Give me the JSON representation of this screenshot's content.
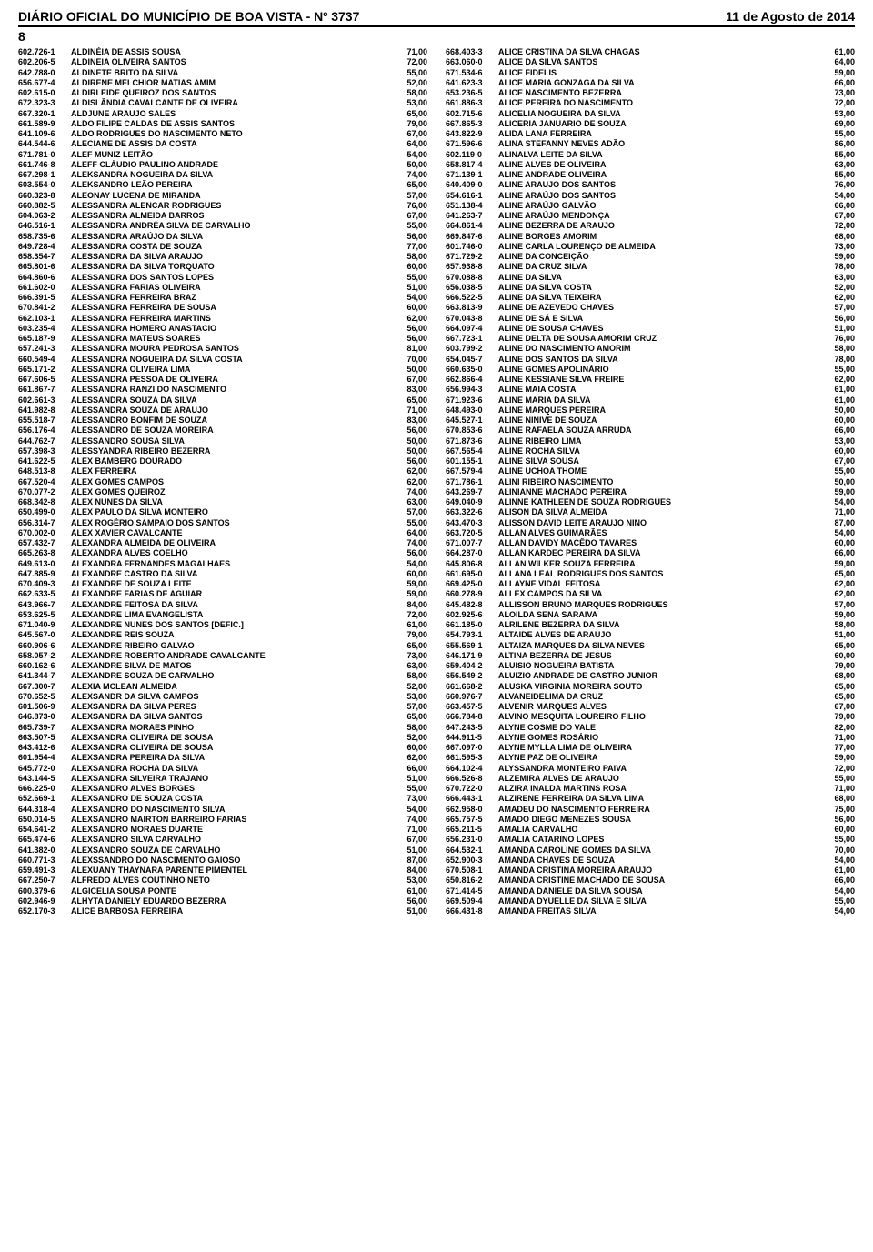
{
  "header": {
    "title": "DIÁRIO OFICIAL DO MUNICÍPIO DE BOA VISTA - Nº 3737",
    "date": "11 de Agosto de 2014",
    "page": "8"
  },
  "left": [
    {
      "code": "602.726-1",
      "name": "ALDINÉIA DE ASSIS SOUSA",
      "score": "71,00"
    },
    {
      "code": "602.206-5",
      "name": "ALDINEIA OLIVEIRA SANTOS",
      "score": "72,00"
    },
    {
      "code": "642.788-0",
      "name": "ALDINETE BRITO DA SILVA",
      "score": "55,00"
    },
    {
      "code": "656.677-4",
      "name": "ALDIRENE MELCHIOR MATIAS AMIM",
      "score": "52,00"
    },
    {
      "code": "602.615-0",
      "name": "ALDIRLEIDE QUEIROZ DOS SANTOS",
      "score": "58,00"
    },
    {
      "code": "672.323-3",
      "name": "ALDISLÂNDIA CAVALCANTE DE OLIVEIRA",
      "score": "53,00"
    },
    {
      "code": "667.320-1",
      "name": "ALDJUNE ARAUJO SALES",
      "score": "65,00"
    },
    {
      "code": "661.589-9",
      "name": "ALDO FILIPE CALDAS DE ASSIS SANTOS",
      "score": "79,00"
    },
    {
      "code": "641.109-6",
      "name": "ALDO RODRIGUES DO NASCIMENTO NETO",
      "score": "67,00"
    },
    {
      "code": "644.544-6",
      "name": "ALECIANE DE ASSIS DA COSTA",
      "score": "64,00"
    },
    {
      "code": "671.781-0",
      "name": "ALEF MUNIZ LEITÃO",
      "score": "54,00"
    },
    {
      "code": "661.746-8",
      "name": "ALEFF CLÁUDIO PAULINO ANDRADE",
      "score": "50,00"
    },
    {
      "code": "667.298-1",
      "name": "ALEKSANDRA NOGUEIRA DA SILVA",
      "score": "74,00"
    },
    {
      "code": "603.554-0",
      "name": "ALEKSANDRO LEÃO PEREIRA",
      "score": "65,00"
    },
    {
      "code": "660.323-8",
      "name": "ALEONAY LUCENA DE MIRANDA",
      "score": "57,00"
    },
    {
      "code": "660.882-5",
      "name": "ALESSANDRA ALENCAR RODRIGUES",
      "score": "76,00"
    },
    {
      "code": "604.063-2",
      "name": "ALESSANDRA ALMEIDA BARROS",
      "score": "67,00"
    },
    {
      "code": "646.516-1",
      "name": "ALESSANDRA ANDRÉA SILVA DE CARVALHO",
      "score": "55,00"
    },
    {
      "code": "658.735-6",
      "name": "ALESSANDRA ARAÚJO DA SILVA",
      "score": "56,00"
    },
    {
      "code": "649.728-4",
      "name": "ALESSANDRA COSTA DE SOUZA",
      "score": "77,00"
    },
    {
      "code": "658.354-7",
      "name": "ALESSANDRA DA SILVA ARAUJO",
      "score": "58,00"
    },
    {
      "code": "665.801-6",
      "name": "ALESSANDRA DA SILVA TORQUATO",
      "score": "60,00"
    },
    {
      "code": "664.860-6",
      "name": "ALESSANDRA DOS SANTOS LOPES",
      "score": "55,00"
    },
    {
      "code": "661.602-0",
      "name": "ALESSANDRA FARIAS OLIVEIRA",
      "score": "51,00"
    },
    {
      "code": "666.391-5",
      "name": "ALESSANDRA FERREIRA BRAZ",
      "score": "54,00"
    },
    {
      "code": "670.841-2",
      "name": "ALESSANDRA FERREIRA DE SOUSA",
      "score": "60,00"
    },
    {
      "code": "662.103-1",
      "name": "ALESSANDRA FERREIRA MARTINS",
      "score": "62,00"
    },
    {
      "code": "603.235-4",
      "name": "ALESSANDRA HOMERO ANASTACIO",
      "score": "56,00"
    },
    {
      "code": "665.187-9",
      "name": "ALESSANDRA MATEUS SOARES",
      "score": "56,00"
    },
    {
      "code": "657.241-3",
      "name": "ALESSANDRA MOURA PEDROSA SANTOS",
      "score": "81,00"
    },
    {
      "code": "660.549-4",
      "name": "ALESSANDRA NOGUEIRA DA SILVA COSTA",
      "score": "70,00"
    },
    {
      "code": "665.171-2",
      "name": "ALESSANDRA OLIVEIRA LIMA",
      "score": "50,00"
    },
    {
      "code": "667.606-5",
      "name": "ALESSANDRA PESSOA DE OLIVEIRA",
      "score": "67,00"
    },
    {
      "code": "661.867-7",
      "name": "ALESSANDRA RANZI DO NASCIMENTO",
      "score": "83,00"
    },
    {
      "code": "602.661-3",
      "name": "ALESSANDRA SOUZA DA SILVA",
      "score": "65,00"
    },
    {
      "code": "641.982-8",
      "name": "ALESSANDRA SOUZA DE ARAÚJO",
      "score": "71,00"
    },
    {
      "code": "655.518-7",
      "name": "ALESSANDRO BONFIM DE SOUZA",
      "score": "83,00"
    },
    {
      "code": "656.176-4",
      "name": "ALESSANDRO DE SOUZA MOREIRA",
      "score": "56,00"
    },
    {
      "code": "644.762-7",
      "name": "ALESSANDRO SOUSA SILVA",
      "score": "50,00"
    },
    {
      "code": "657.398-3",
      "name": "ALESSYANDRA RIBEIRO BEZERRA",
      "score": "50,00"
    },
    {
      "code": "641.622-5",
      "name": "ALEX BAMBERG DOURADO",
      "score": "56,00"
    },
    {
      "code": "648.513-8",
      "name": "ALEX FERREIRA",
      "score": "62,00"
    },
    {
      "code": "667.520-4",
      "name": "ALEX GOMES CAMPOS",
      "score": "62,00"
    },
    {
      "code": "670.077-2",
      "name": "ALEX GOMES QUEIROZ",
      "score": "74,00"
    },
    {
      "code": "668.342-8",
      "name": "ALEX NUNES DA SILVA",
      "score": "63,00"
    },
    {
      "code": "650.499-0",
      "name": "ALEX PAULO DA SILVA MONTEIRO",
      "score": "57,00"
    },
    {
      "code": "656.314-7",
      "name": "ALEX ROGÉRIO SAMPAIO DOS SANTOS",
      "score": "55,00"
    },
    {
      "code": "670.002-0",
      "name": "ALEX XAVIER CAVALCANTE",
      "score": "64,00"
    },
    {
      "code": "657.432-7",
      "name": "ALEXANDRA ALMEIDA DE OLIVEIRA",
      "score": "74,00"
    },
    {
      "code": "665.263-8",
      "name": "ALEXANDRA ALVES COELHO",
      "score": "56,00"
    },
    {
      "code": "649.613-0",
      "name": "ALEXANDRA FERNANDES MAGALHAES",
      "score": "54,00"
    },
    {
      "code": "647.885-9",
      "name": "ALEXANDRE CASTRO DA SILVA",
      "score": "60,00"
    },
    {
      "code": "670.409-3",
      "name": "ALEXANDRE DE SOUZA LEITE",
      "score": "59,00"
    },
    {
      "code": "662.633-5",
      "name": "ALEXANDRE FARIAS DE AGUIAR",
      "score": "59,00"
    },
    {
      "code": "643.966-7",
      "name": "ALEXANDRE FEITOSA DA SILVA",
      "score": "84,00"
    },
    {
      "code": "653.625-5",
      "name": "ALEXANDRE LIMA EVANGELISTA",
      "score": "72,00"
    },
    {
      "code": "671.040-9",
      "name": "ALEXANDRE NUNES DOS SANTOS [DEFIC.]",
      "score": "61,00"
    },
    {
      "code": "645.567-0",
      "name": "ALEXANDRE REIS SOUZA",
      "score": "79,00"
    },
    {
      "code": "660.906-6",
      "name": "ALEXANDRE RIBEIRO GALVAO",
      "score": "65,00"
    },
    {
      "code": "658.057-2",
      "name": "ALEXANDRE ROBERTO ANDRADE CAVALCANTE",
      "score": "73,00"
    },
    {
      "code": "660.162-6",
      "name": "ALEXANDRE SILVA DE MATOS",
      "score": "63,00"
    },
    {
      "code": "641.344-7",
      "name": "ALEXANDRE SOUZA DE CARVALHO",
      "score": "58,00"
    },
    {
      "code": "667.300-7",
      "name": "ALEXIA MCLEAN ALMEIDA",
      "score": "52,00"
    },
    {
      "code": "670.652-5",
      "name": "ALEXSANDR DA SILVA CAMPOS",
      "score": "53,00"
    },
    {
      "code": "601.506-9",
      "name": "ALEXSANDRA DA SILVA PERES",
      "score": "57,00"
    },
    {
      "code": "646.873-0",
      "name": "ALEXSANDRA DA SILVA SANTOS",
      "score": "65,00"
    },
    {
      "code": "665.739-7",
      "name": "ALEXSANDRA MORAES PINHO",
      "score": "58,00"
    },
    {
      "code": "663.507-5",
      "name": "ALEXSANDRA OLIVEIRA DE SOUSA",
      "score": "52,00"
    },
    {
      "code": "643.412-6",
      "name": "ALEXSANDRA OLIVEIRA DE SOUSA",
      "score": "60,00"
    },
    {
      "code": "601.954-4",
      "name": "ALEXSANDRA PEREIRA DA SILVA",
      "score": "62,00"
    },
    {
      "code": "645.772-0",
      "name": "ALEXSANDRA ROCHA DA SILVA",
      "score": "66,00"
    },
    {
      "code": "643.144-5",
      "name": "ALEXSANDRA SILVEIRA TRAJANO",
      "score": "51,00"
    },
    {
      "code": "666.225-0",
      "name": "ALEXSANDRO ALVES BORGES",
      "score": "55,00"
    },
    {
      "code": "652.669-1",
      "name": "ALEXSANDRO DE SOUZA COSTA",
      "score": "73,00"
    },
    {
      "code": "644.318-4",
      "name": "ALEXSANDRO DO NASCIMENTO SILVA",
      "score": "54,00"
    },
    {
      "code": "650.014-5",
      "name": "ALEXSANDRO MAIRTON BARREIRO FARIAS",
      "score": "74,00"
    },
    {
      "code": "654.641-2",
      "name": "ALEXSANDRO MORAES DUARTE",
      "score": "71,00"
    },
    {
      "code": "665.474-6",
      "name": "ALEXSANDRO SILVA CARVALHO",
      "score": "67,00"
    },
    {
      "code": "641.382-0",
      "name": "ALEXSANDRO SOUZA DE CARVALHO",
      "score": "51,00"
    },
    {
      "code": "660.771-3",
      "name": "ALEXSSANDRO DO NASCIMENTO GAIOSO",
      "score": "87,00"
    },
    {
      "code": "659.491-3",
      "name": "ALEXUANY THAYNARA PARENTE PIMENTEL",
      "score": "84,00"
    },
    {
      "code": "667.250-7",
      "name": "ALFREDO ALVES COUTINHO NETO",
      "score": "53,00"
    },
    {
      "code": "600.379-6",
      "name": "ALGICELIA SOUSA PONTE",
      "score": "61,00"
    },
    {
      "code": "602.946-9",
      "name": "ALHYTA DANIELY EDUARDO BEZERRA",
      "score": "56,00"
    },
    {
      "code": "652.170-3",
      "name": "ALICE BARBOSA FERREIRA",
      "score": "51,00"
    }
  ],
  "right": [
    {
      "code": "668.403-3",
      "name": "ALICE CRISTINA DA SILVA CHAGAS",
      "score": "61,00"
    },
    {
      "code": "663.060-0",
      "name": "ALICE DA SILVA SANTOS",
      "score": "64,00"
    },
    {
      "code": "671.534-6",
      "name": "ALICE FIDELIS",
      "score": "59,00"
    },
    {
      "code": "641.623-3",
      "name": "ALICE MARIA GONZAGA DA SILVA",
      "score": "66,00"
    },
    {
      "code": "653.236-5",
      "name": "ALICE NASCIMENTO BEZERRA",
      "score": "73,00"
    },
    {
      "code": "661.886-3",
      "name": "ALICE PEREIRA DO NASCIMENTO",
      "score": "72,00"
    },
    {
      "code": "602.715-6",
      "name": "ALICELIA NOGUEIRA DA SILVA",
      "score": "53,00"
    },
    {
      "code": "667.865-3",
      "name": "ALICERIA JANUARIO DE SOUZA",
      "score": "69,00"
    },
    {
      "code": "643.822-9",
      "name": "ALIDA LANA FERREIRA",
      "score": "55,00"
    },
    {
      "code": "671.596-6",
      "name": "ALINA STEFANNY NEVES ADÃO",
      "score": "86,00"
    },
    {
      "code": "602.119-0",
      "name": "ALINALVA LEITE DA SILVA",
      "score": "55,00"
    },
    {
      "code": "658.817-4",
      "name": "ALINE ALVES DE OLIVEIRA",
      "score": "63,00"
    },
    {
      "code": "671.139-1",
      "name": "ALINE ANDRADE OLIVEIRA",
      "score": "55,00"
    },
    {
      "code": "640.409-0",
      "name": "ALINE ARAUJO DOS SANTOS",
      "score": "76,00"
    },
    {
      "code": "654.616-1",
      "name": "ALINE ARAÚJO DOS SANTOS",
      "score": "54,00"
    },
    {
      "code": "651.138-4",
      "name": "ALINE ARAÚJO GALVÃO",
      "score": "66,00"
    },
    {
      "code": "641.263-7",
      "name": "ALINE ARAÚJO MENDONÇA",
      "score": "67,00"
    },
    {
      "code": "664.861-4",
      "name": "ALINE BEZERRA DE ARAUJO",
      "score": "72,00"
    },
    {
      "code": "669.847-6",
      "name": "ALINE BORGES AMORIM",
      "score": "68,00"
    },
    {
      "code": "601.746-0",
      "name": "ALINE CARLA LOURENÇO DE ALMEIDA",
      "score": "73,00"
    },
    {
      "code": "671.729-2",
      "name": "ALINE DA CONCEIÇÃO",
      "score": "59,00"
    },
    {
      "code": "657.938-8",
      "name": "ALINE DA CRUZ SILVA",
      "score": "78,00"
    },
    {
      "code": "670.088-8",
      "name": "ALINE DA SILVA",
      "score": "63,00"
    },
    {
      "code": "656.038-5",
      "name": "ALINE DA SILVA COSTA",
      "score": "52,00"
    },
    {
      "code": "666.522-5",
      "name": "ALINE DA SILVA TEIXEIRA",
      "score": "62,00"
    },
    {
      "code": "663.813-9",
      "name": "ALINE DE AZEVEDO CHAVES",
      "score": "57,00"
    },
    {
      "code": "670.043-8",
      "name": "ALINE DE SÁ E SILVA",
      "score": "56,00"
    },
    {
      "code": "664.097-4",
      "name": "ALINE DE SOUSA CHAVES",
      "score": "51,00"
    },
    {
      "code": "667.723-1",
      "name": "ALINE DELTA DE SOUSA AMORIM CRUZ",
      "score": "76,00"
    },
    {
      "code": "603.799-2",
      "name": "ALINE DO NASCIMENTO AMORIM",
      "score": "58,00"
    },
    {
      "code": "654.045-7",
      "name": "ALINE DOS SANTOS DA SILVA",
      "score": "78,00"
    },
    {
      "code": "660.635-0",
      "name": "ALINE GOMES APOLINÁRIO",
      "score": "55,00"
    },
    {
      "code": "662.866-4",
      "name": "ALINE KESSIANE SILVA FREIRE",
      "score": "62,00"
    },
    {
      "code": "656.994-3",
      "name": "ALINE MAIA COSTA",
      "score": "61,00"
    },
    {
      "code": "671.923-6",
      "name": "ALINE MARIA DA SILVA",
      "score": "61,00"
    },
    {
      "code": "648.493-0",
      "name": "ALINE MARQUES PEREIRA",
      "score": "50,00"
    },
    {
      "code": "645.527-1",
      "name": "ALINE NINIVE DE SOUZA",
      "score": "60,00"
    },
    {
      "code": "670.853-6",
      "name": "ALINE RAFAELA SOUZA ARRUDA",
      "score": "66,00"
    },
    {
      "code": "671.873-6",
      "name": "ALINE RIBEIRO LIMA",
      "score": "53,00"
    },
    {
      "code": "667.565-4",
      "name": "ALINE ROCHA SILVA",
      "score": "60,00"
    },
    {
      "code": "601.155-1",
      "name": "ALINE SILVA SOUSA",
      "score": "67,00"
    },
    {
      "code": "667.579-4",
      "name": "ALINE UCHOA THOME",
      "score": "55,00"
    },
    {
      "code": "671.786-1",
      "name": "ALINI RIBEIRO NASCIMENTO",
      "score": "50,00"
    },
    {
      "code": "643.269-7",
      "name": "ALINIANNE MACHADO PEREIRA",
      "score": "59,00"
    },
    {
      "code": "649.040-9",
      "name": "ALINNE KATHLEEN DE SOUZA RODRIGUES",
      "score": "54,00"
    },
    {
      "code": "663.322-6",
      "name": "ALISON DA SILVA ALMEIDA",
      "score": "71,00"
    },
    {
      "code": "643.470-3",
      "name": "ALISSON DAVID LEITE ARAUJO NINO",
      "score": "87,00"
    },
    {
      "code": "663.720-5",
      "name": "ALLAN ALVES GUIMARÃES",
      "score": "54,00"
    },
    {
      "code": "671.007-7",
      "name": "ALLAN DAVIDY MACÊDO TAVARES",
      "score": "60,00"
    },
    {
      "code": "664.287-0",
      "name": "ALLAN KARDEC PEREIRA DA SILVA",
      "score": "66,00"
    },
    {
      "code": "645.806-8",
      "name": "ALLAN WILKER SOUZA FERREIRA",
      "score": "59,00"
    },
    {
      "code": "661.695-0",
      "name": "ALLANA LEAL RODRIGUES DOS SANTOS",
      "score": "65,00"
    },
    {
      "code": "669.425-0",
      "name": "ALLAYNE VIDAL FEITOSA",
      "score": "62,00"
    },
    {
      "code": "660.278-9",
      "name": "ALLEX CAMPOS DA SILVA",
      "score": "62,00"
    },
    {
      "code": "645.482-8",
      "name": "ALLISSON BRUNO MARQUES RODRIGUES",
      "score": "57,00"
    },
    {
      "code": "602.925-6",
      "name": "ALOILDA SENA SARAIVA",
      "score": "59,00"
    },
    {
      "code": "661.185-0",
      "name": "ALRILENE BEZERRA DA SILVA",
      "score": "58,00"
    },
    {
      "code": "654.793-1",
      "name": "ALTAIDE ALVES DE ARAUJO",
      "score": "51,00"
    },
    {
      "code": "655.569-1",
      "name": "ALTAIZA MARQUES DA SILVA NEVES",
      "score": "65,00"
    },
    {
      "code": "646.171-9",
      "name": "ALTINA BEZERRA DE JESUS",
      "score": "60,00"
    },
    {
      "code": "659.404-2",
      "name": "ALUISIO NOGUEIRA BATISTA",
      "score": "79,00"
    },
    {
      "code": "656.549-2",
      "name": "ALUIZIO ANDRADE DE CASTRO JUNIOR",
      "score": "68,00"
    },
    {
      "code": "661.668-2",
      "name": "ALUSKA VIRGINIA MOREIRA SOUTO",
      "score": "65,00"
    },
    {
      "code": "660.976-7",
      "name": "ALVANEIDELIMA DA CRUZ",
      "score": "65,00"
    },
    {
      "code": "663.457-5",
      "name": "ALVENIR MARQUES ALVES",
      "score": "67,00"
    },
    {
      "code": "666.784-8",
      "name": "ALVINO MESQUITA LOUREIRO FILHO",
      "score": "79,00"
    },
    {
      "code": "647.243-5",
      "name": "ALYNE COSME DO VALE",
      "score": "82,00"
    },
    {
      "code": "644.911-5",
      "name": "ALYNE GOMES ROSÁRIO",
      "score": "71,00"
    },
    {
      "code": "667.097-0",
      "name": "ALYNE MYLLA LIMA DE OLIVEIRA",
      "score": "77,00"
    },
    {
      "code": "661.595-3",
      "name": "ALYNE PAZ DE OLIVEIRA",
      "score": "59,00"
    },
    {
      "code": "664.102-4",
      "name": "ALYSSANDRA MONTEIRO PAIVA",
      "score": "72,00"
    },
    {
      "code": "666.526-8",
      "name": "ALZEMIRA ALVES DE ARAUJO",
      "score": "55,00"
    },
    {
      "code": "670.722-0",
      "name": "ALZIRA INALDA MARTINS ROSA",
      "score": "71,00"
    },
    {
      "code": "666.443-1",
      "name": "ALZIRENE FERREIRA DA SILVA LIMA",
      "score": "68,00"
    },
    {
      "code": "662.958-0",
      "name": "AMADEU DO NASCIMENTO FERREIRA",
      "score": "75,00"
    },
    {
      "code": "665.757-5",
      "name": "AMADO DIEGO MENEZES SOUSA",
      "score": "56,00"
    },
    {
      "code": "665.211-5",
      "name": "AMALIA CARVALHO",
      "score": "60,00"
    },
    {
      "code": "656.231-0",
      "name": "AMALIA CATARINO LOPES",
      "score": "55,00"
    },
    {
      "code": "664.532-1",
      "name": "AMANDA CAROLINE GOMES DA SILVA",
      "score": "70,00"
    },
    {
      "code": "652.900-3",
      "name": "AMANDA CHAVES DE SOUZA",
      "score": "54,00"
    },
    {
      "code": "670.508-1",
      "name": "AMANDA CRISTINA MOREIRA ARAUJO",
      "score": "61,00"
    },
    {
      "code": "650.816-2",
      "name": "AMANDA CRISTINE MACHADO DE SOUSA",
      "score": "66,00"
    },
    {
      "code": "671.414-5",
      "name": "AMANDA DANIELE DA SILVA SOUSA",
      "score": "54,00"
    },
    {
      "code": "669.509-4",
      "name": "AMANDA DYUELLE DA SILVA E SILVA",
      "score": "55,00"
    },
    {
      "code": "666.431-8",
      "name": "AMANDA FREITAS SILVA",
      "score": "54,00"
    }
  ]
}
